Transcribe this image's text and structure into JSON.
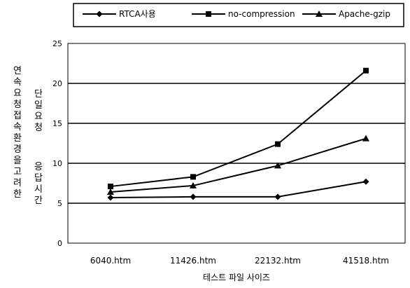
{
  "chart_data": {
    "type": "line",
    "categories": [
      "6040.htm",
      "11426.htm",
      "22132.htm",
      "41518.htm"
    ],
    "series": [
      {
        "name": "RTCA사용",
        "marker": "diamond",
        "values": [
          5.7,
          5.8,
          5.8,
          7.7
        ]
      },
      {
        "name": "no-compression",
        "marker": "square",
        "values": [
          7.1,
          8.3,
          12.4,
          21.6
        ]
      },
      {
        "name": "Apache-gzip",
        "marker": "triangle",
        "values": [
          6.4,
          7.2,
          9.7,
          13.1
        ]
      }
    ],
    "ylim": [
      0,
      25
    ],
    "yticks": [
      0,
      5,
      10,
      15,
      20,
      25
    ],
    "xlabel": "테스트 파일 사이즈",
    "ylabel_outer": "연속요청접속환경을고려한",
    "ylabel_inner_1": "단일요청",
    "ylabel_inner_2": "응답시간",
    "grid": true,
    "legend": "top"
  }
}
